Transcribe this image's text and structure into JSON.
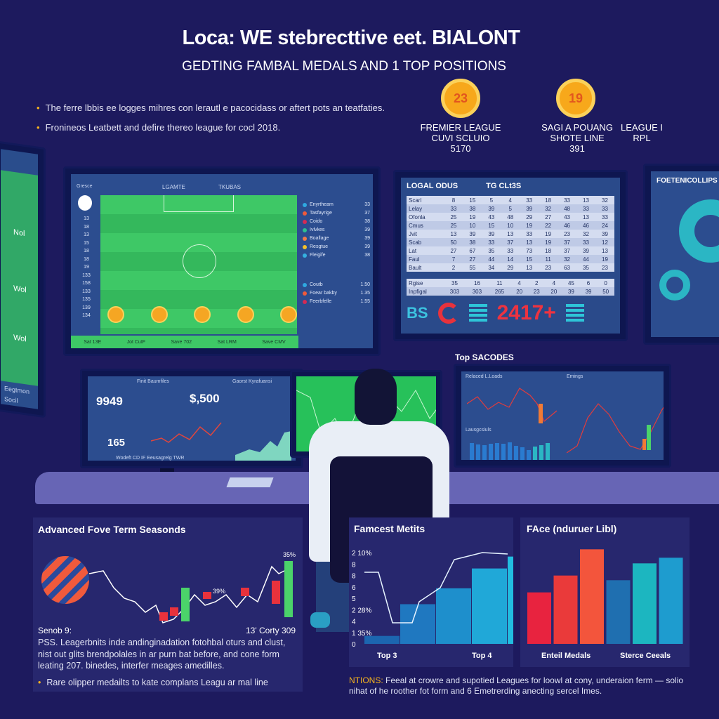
{
  "header": {
    "title": "Loca: WE stebrecttive eet. BIALONT",
    "subtitle": "GEDTING FAMBAL MEDALS AND 1 TOP POSITIONS"
  },
  "bullets": [
    "The ferre lbbis ee logges mihres con lerautl e pacocidass or aftert pots an teatfaties.",
    "Fronineos Leatbett and defire thereo league for cocl 2018."
  ],
  "badges": [
    {
      "value": "23",
      "lines": [
        "FREMIER LEAGUE",
        "CUVI SCLUIO",
        "5170"
      ]
    },
    {
      "value": "19",
      "lines": [
        "SAGI A POUANG",
        "SHOTE LINE",
        "391"
      ]
    },
    {
      "value": "",
      "lines": [
        "LEAGUE I",
        "RPL"
      ]
    }
  ],
  "colors": {
    "background": "#1d1a5e",
    "accent_orange": "#f7a81b",
    "pitch_green": "#3ec866",
    "screen_blue": "#2c4d8f",
    "red": "#e8323c"
  },
  "pitch_monitor": {
    "tab": "Gresce",
    "home": "LGAMTE",
    "away": "TKUBAS",
    "side_list": [
      "Enyrtheam",
      "Tasfayrige",
      "Coido",
      "Ivlvkes",
      "Boallage",
      "Resgtue",
      "Fleigife"
    ],
    "side_values": [
      "33",
      "37",
      "38",
      "39",
      "39",
      "39",
      "38"
    ],
    "side_list2": [
      "Coutb",
      "Foear bakby",
      "Feerbfelle"
    ],
    "side_values2": [
      "1.50",
      "1.35",
      "1.55"
    ],
    "left_values": [
      "13",
      "18",
      "13",
      "15",
      "18",
      "18",
      "19",
      "133",
      "158",
      "133",
      "135",
      "139",
      "134"
    ],
    "footer": [
      "Sat 13E",
      "Jot CuIF",
      "Save 702",
      "Sat LRM",
      "Save CMV"
    ]
  },
  "league_table": {
    "title": "LOGAL ODUS",
    "subtitle": "TG CLt3S",
    "rows": [
      {
        "club": "Scarl",
        "values": [
          "8",
          "15",
          "5",
          "4",
          "33",
          "18",
          "33",
          "13",
          "32"
        ]
      },
      {
        "club": "Lelay",
        "values": [
          "33",
          "38",
          "39",
          "5",
          "39",
          "32",
          "48",
          "33",
          "33"
        ]
      },
      {
        "club": "Ofonla",
        "values": [
          "25",
          "19",
          "43",
          "48",
          "29",
          "27",
          "43",
          "13",
          "33"
        ]
      },
      {
        "club": "Cmus",
        "values": [
          "25",
          "10",
          "15",
          "10",
          "19",
          "22",
          "46",
          "46",
          "24"
        ]
      },
      {
        "club": "Jvit",
        "values": [
          "13",
          "39",
          "39",
          "13",
          "33",
          "19",
          "23",
          "32",
          "39"
        ]
      },
      {
        "club": "Scab",
        "values": [
          "50",
          "38",
          "33",
          "37",
          "13",
          "19",
          "37",
          "33",
          "12"
        ]
      },
      {
        "club": "Lat",
        "values": [
          "27",
          "67",
          "35",
          "33",
          "73",
          "18",
          "37",
          "39",
          "13"
        ]
      },
      {
        "club": "Faul",
        "values": [
          "7",
          "27",
          "44",
          "14",
          "15",
          "11",
          "32",
          "44",
          "19"
        ]
      },
      {
        "club": "Bault",
        "values": [
          "2",
          "55",
          "34",
          "29",
          "13",
          "23",
          "63",
          "35",
          "23"
        ]
      }
    ],
    "summary": [
      {
        "club": "Rgise",
        "values": [
          "35",
          "16",
          "11",
          "4",
          "2",
          "4",
          "45",
          "6",
          "0"
        ]
      },
      {
        "club": "Inpfigal",
        "values": [
          "303",
          "303",
          "265",
          "20",
          "23",
          "20",
          "39",
          "39",
          "50"
        ]
      }
    ],
    "logo_text": "BS",
    "big_number": "2417+"
  },
  "right_panel": {
    "title": "FOETENICOLLIPS"
  },
  "left_panel": {
    "labels": [
      "Nol",
      "Wol",
      "Wol",
      "Eegtmon",
      "Socil"
    ]
  },
  "lower_left_monitor": {
    "title": "Finit Baumfiles",
    "big1": "9949",
    "big2": "$,500",
    "big3": "165",
    "mid_title": "Gaorst Kyrafuansi",
    "footer": "Wodeft CD IF Eeusagrelg TWR"
  },
  "top_scores": {
    "label": "Top SACODES",
    "chart1": "Relaced L.Loads",
    "chart2": "Emings",
    "chart3": "Lausgcsiuls"
  },
  "bottom": {
    "left": {
      "title": "Advanced Fove Term Seasonds",
      "ann1": "39%",
      "ann2": "35%",
      "caption_left": "Senob 9:",
      "caption_right": "13' Corty 309",
      "para": "PSS. Leagerbnits inde andinginadation fotohbal oturs and clust, nist out glits brendpolales in ar purn bat before, and cone form leating 207. binedes, interfer meages amedilles.",
      "bullet": "Rare olipper medailts to kate complans Leagu ar mal line"
    },
    "middle": {
      "title": "Famcest Metits",
      "yticks": [
        "0",
        "1 35%",
        "4",
        "2 28%",
        "5",
        "6",
        "8",
        "8",
        "2 10%"
      ],
      "xlabels": [
        "Top 3",
        "Top 4"
      ],
      "values": [
        1,
        5,
        7,
        9.5,
        11
      ]
    },
    "right": {
      "title": "FAce (nduruer Libl)",
      "xlabels": [
        "Enteil Medals",
        "Sterce Ceeals"
      ],
      "values": [
        5.5,
        7.3,
        10.1,
        6.8,
        8.6,
        9.2
      ],
      "colors": [
        "#e8233f",
        "#ea3a3a",
        "#f3553c",
        "#1f6fb0",
        "#1cb6c0",
        "#1e9ccf"
      ]
    },
    "footnote_label": "NTIONS:",
    "footnote": "Feeal at crowre and supotied Leagues for loowl at cony, underaion ferm — solio nihat of he roother fot form and 6 Emetrerding anecting sercel Imes."
  }
}
